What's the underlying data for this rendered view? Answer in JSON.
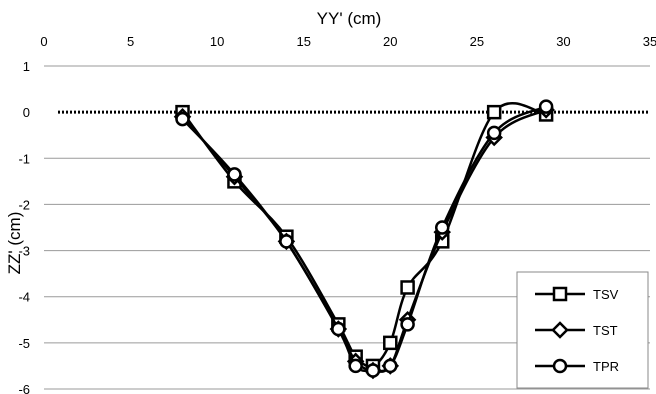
{
  "chart_data": {
    "type": "line",
    "title": "",
    "xlabel": "YY' (cm)",
    "ylabel": "ZZ' (cm)",
    "xlim": [
      0,
      35
    ],
    "ylim": [
      -6,
      1
    ],
    "xticks": [
      "0",
      "5",
      "10",
      "15",
      "20",
      "25",
      "30",
      "35"
    ],
    "yticks": [
      "1",
      "0",
      "-1",
      "-2",
      "-3",
      "-4",
      "-5",
      "-6"
    ],
    "x_axis_position": "top",
    "grid": "horizontal",
    "zero_line": "dotted",
    "legend_position": "bottom-right",
    "series": [
      {
        "name": "TSV",
        "marker": "square",
        "x": [
          8,
          11,
          14,
          17,
          18,
          19,
          20,
          21,
          23,
          26,
          29
        ],
        "y": [
          0,
          -1.5,
          -2.7,
          -4.6,
          -5.3,
          -5.5,
          -5.0,
          -3.8,
          -2.8,
          0,
          -0.05
        ]
      },
      {
        "name": "TST",
        "marker": "diamond",
        "x": [
          8,
          11,
          14,
          17,
          18,
          19,
          20,
          21,
          23,
          26,
          29
        ],
        "y": [
          -0.1,
          -1.4,
          -2.8,
          -4.7,
          -5.4,
          -5.6,
          -5.5,
          -4.5,
          -2.6,
          -0.55,
          0.05
        ]
      },
      {
        "name": "TPR",
        "marker": "circle",
        "x": [
          8,
          11,
          14,
          17,
          18,
          19,
          20,
          21,
          23,
          26,
          29
        ],
        "y": [
          -0.15,
          -1.35,
          -2.8,
          -4.7,
          -5.5,
          -5.6,
          -5.5,
          -4.6,
          -2.5,
          -0.45,
          0.12
        ]
      }
    ]
  }
}
